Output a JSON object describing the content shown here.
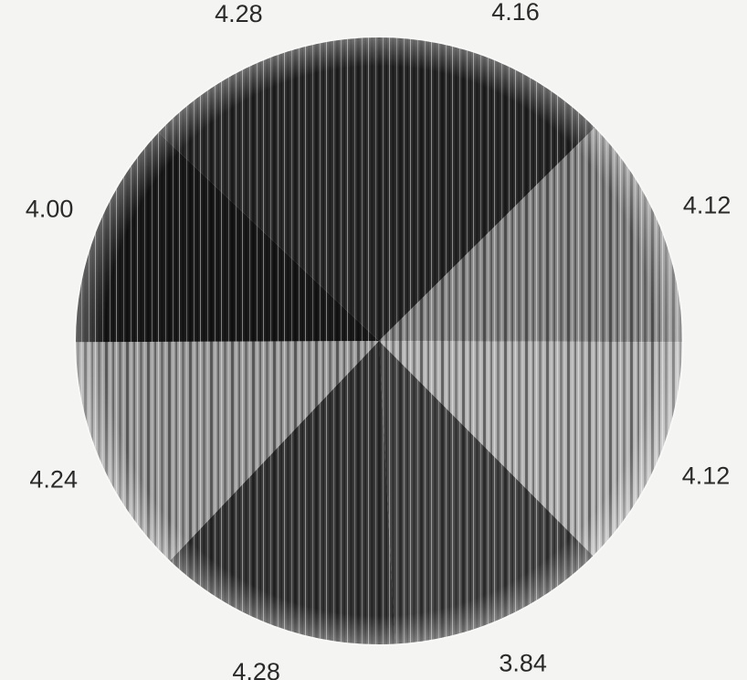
{
  "chart_data": {
    "type": "pie",
    "categories": [
      "",
      "",
      "",
      "",
      "",
      "",
      "",
      ""
    ],
    "values": [
      4.16,
      4.12,
      4.12,
      3.84,
      4.28,
      4.24,
      4.0,
      4.28
    ],
    "labels": [
      "4.16",
      "4.12",
      "4.12",
      "3.84",
      "4.28",
      "4.24",
      "4.00",
      "4.28"
    ],
    "colors": [
      "#2b2b2b",
      "#8a8a8a",
      "#b4b4b4",
      "#4a4a4a",
      "#3a3a3a",
      "#9e9e9e",
      "#1c1c1c",
      "#2e2e2e"
    ],
    "start_angle_deg": 0,
    "direction": "clockwise",
    "texture": "vertical-stripes",
    "title": "",
    "legend": "none"
  }
}
